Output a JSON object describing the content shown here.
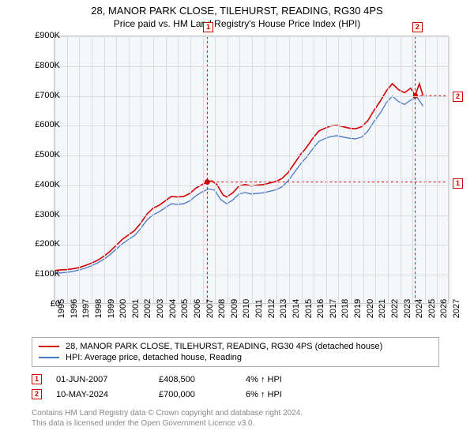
{
  "title": "28, MANOR PARK CLOSE, TILEHURST, READING, RG30 4PS",
  "subtitle": "Price paid vs. HM Land Registry's House Price Index (HPI)",
  "chart": {
    "type": "line",
    "background_color": "#f4f6f9",
    "grid_color": "#d5dde5",
    "border_color": "#cccccc",
    "x": {
      "min": 1995,
      "max": 2027,
      "ticks": [
        1995,
        1996,
        1997,
        1998,
        1999,
        2000,
        2001,
        2002,
        2003,
        2004,
        2005,
        2006,
        2007,
        2008,
        2009,
        2010,
        2011,
        2012,
        2013,
        2014,
        2015,
        2016,
        2017,
        2018,
        2019,
        2020,
        2021,
        2022,
        2023,
        2024,
        2025,
        2026,
        2027
      ]
    },
    "y": {
      "min": 0,
      "max": 900000,
      "ticks": [
        0,
        100000,
        200000,
        300000,
        400000,
        500000,
        600000,
        700000,
        800000,
        900000
      ],
      "labels": [
        "£0",
        "£100K",
        "£200K",
        "£300K",
        "£400K",
        "£500K",
        "£600K",
        "£700K",
        "£800K",
        "£900K"
      ]
    },
    "label_fontsize": 11,
    "series": [
      {
        "name": "28, MANOR PARK CLOSE, TILEHURST, READING, RG30 4PS (detached house)",
        "color": "#d40000",
        "line_width": 1.6,
        "points": [
          [
            1995.0,
            110000
          ],
          [
            1995.5,
            112000
          ],
          [
            1996.0,
            113000
          ],
          [
            1996.5,
            116000
          ],
          [
            1997.0,
            120000
          ],
          [
            1997.5,
            127000
          ],
          [
            1998.0,
            135000
          ],
          [
            1998.5,
            145000
          ],
          [
            1999.0,
            158000
          ],
          [
            1999.5,
            175000
          ],
          [
            2000.0,
            195000
          ],
          [
            2000.5,
            215000
          ],
          [
            2001.0,
            230000
          ],
          [
            2001.5,
            245000
          ],
          [
            2002.0,
            270000
          ],
          [
            2002.5,
            300000
          ],
          [
            2003.0,
            320000
          ],
          [
            2003.5,
            330000
          ],
          [
            2004.0,
            345000
          ],
          [
            2004.5,
            360000
          ],
          [
            2005.0,
            358000
          ],
          [
            2005.5,
            360000
          ],
          [
            2006.0,
            370000
          ],
          [
            2006.5,
            388000
          ],
          [
            2007.0,
            400000
          ],
          [
            2007.42,
            408500
          ],
          [
            2007.8,
            412000
          ],
          [
            2008.2,
            400000
          ],
          [
            2008.7,
            365000
          ],
          [
            2009.0,
            358000
          ],
          [
            2009.5,
            372000
          ],
          [
            2010.0,
            395000
          ],
          [
            2010.5,
            400000
          ],
          [
            2011.0,
            395000
          ],
          [
            2011.5,
            398000
          ],
          [
            2012.0,
            400000
          ],
          [
            2012.5,
            405000
          ],
          [
            2013.0,
            410000
          ],
          [
            2013.5,
            420000
          ],
          [
            2014.0,
            440000
          ],
          [
            2014.5,
            470000
          ],
          [
            2015.0,
            500000
          ],
          [
            2015.5,
            525000
          ],
          [
            2016.0,
            555000
          ],
          [
            2016.5,
            580000
          ],
          [
            2017.0,
            590000
          ],
          [
            2017.5,
            598000
          ],
          [
            2018.0,
            600000
          ],
          [
            2018.5,
            595000
          ],
          [
            2019.0,
            590000
          ],
          [
            2019.5,
            588000
          ],
          [
            2020.0,
            595000
          ],
          [
            2020.5,
            615000
          ],
          [
            2021.0,
            650000
          ],
          [
            2021.5,
            680000
          ],
          [
            2022.0,
            715000
          ],
          [
            2022.5,
            740000
          ],
          [
            2023.0,
            720000
          ],
          [
            2023.5,
            710000
          ],
          [
            2024.0,
            725000
          ],
          [
            2024.36,
            700000
          ],
          [
            2024.7,
            740000
          ],
          [
            2025.0,
            700000
          ]
        ]
      },
      {
        "name": "HPI: Average price, detached house, Reading",
        "color": "#4a78c4",
        "line_width": 1.3,
        "points": [
          [
            1995.0,
            100000
          ],
          [
            1995.5,
            102000
          ],
          [
            1996.0,
            104000
          ],
          [
            1996.5,
            107000
          ],
          [
            1997.0,
            112000
          ],
          [
            1997.5,
            118000
          ],
          [
            1998.0,
            126000
          ],
          [
            1998.5,
            136000
          ],
          [
            1999.0,
            148000
          ],
          [
            1999.5,
            164000
          ],
          [
            2000.0,
            182000
          ],
          [
            2000.5,
            200000
          ],
          [
            2001.0,
            215000
          ],
          [
            2001.5,
            228000
          ],
          [
            2002.0,
            252000
          ],
          [
            2002.5,
            280000
          ],
          [
            2003.0,
            298000
          ],
          [
            2003.5,
            308000
          ],
          [
            2004.0,
            322000
          ],
          [
            2004.5,
            335000
          ],
          [
            2005.0,
            333000
          ],
          [
            2005.5,
            335000
          ],
          [
            2006.0,
            345000
          ],
          [
            2006.5,
            362000
          ],
          [
            2007.0,
            375000
          ],
          [
            2007.5,
            385000
          ],
          [
            2008.0,
            382000
          ],
          [
            2008.5,
            350000
          ],
          [
            2009.0,
            335000
          ],
          [
            2009.5,
            348000
          ],
          [
            2010.0,
            368000
          ],
          [
            2010.5,
            373000
          ],
          [
            2011.0,
            368000
          ],
          [
            2011.5,
            370000
          ],
          [
            2012.0,
            372000
          ],
          [
            2012.5,
            377000
          ],
          [
            2013.0,
            382000
          ],
          [
            2013.5,
            392000
          ],
          [
            2014.0,
            412000
          ],
          [
            2014.5,
            440000
          ],
          [
            2015.0,
            468000
          ],
          [
            2015.5,
            492000
          ],
          [
            2016.0,
            520000
          ],
          [
            2016.5,
            545000
          ],
          [
            2017.0,
            555000
          ],
          [
            2017.5,
            562000
          ],
          [
            2018.0,
            565000
          ],
          [
            2018.5,
            560000
          ],
          [
            2019.0,
            556000
          ],
          [
            2019.5,
            554000
          ],
          [
            2020.0,
            560000
          ],
          [
            2020.5,
            580000
          ],
          [
            2021.0,
            612000
          ],
          [
            2021.5,
            640000
          ],
          [
            2022.0,
            675000
          ],
          [
            2022.5,
            698000
          ],
          [
            2023.0,
            680000
          ],
          [
            2023.5,
            670000
          ],
          [
            2024.0,
            685000
          ],
          [
            2024.5,
            695000
          ],
          [
            2025.0,
            665000
          ]
        ]
      }
    ],
    "sale_markers": [
      {
        "n": "1",
        "date_x": 2007.42,
        "price_y": 408500
      },
      {
        "n": "2",
        "date_x": 2024.36,
        "price_y": 700000
      }
    ]
  },
  "legend": {
    "border_color": "#aaaaaa",
    "items": [
      {
        "color": "#d40000",
        "label": "28, MANOR PARK CLOSE, TILEHURST, READING, RG30 4PS (detached house)"
      },
      {
        "color": "#4a78c4",
        "label": "HPI: Average price, detached house, Reading"
      }
    ]
  },
  "sales": [
    {
      "n": "1",
      "date": "01-JUN-2007",
      "price": "£408,500",
      "diff": "4% ↑ HPI"
    },
    {
      "n": "2",
      "date": "10-MAY-2024",
      "price": "£700,000",
      "diff": "6% ↑ HPI"
    }
  ],
  "footer": {
    "line1": "Contains HM Land Registry data © Crown copyright and database right 2024.",
    "line2": "This data is licensed under the Open Government Licence v3.0."
  }
}
